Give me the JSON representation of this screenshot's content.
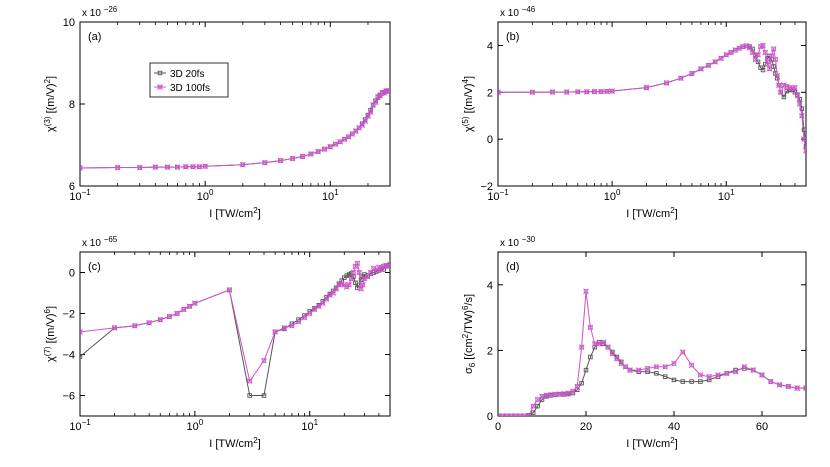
{
  "chart_data": [
    {
      "type": "line",
      "panel_label": "(a)",
      "xscale": "log",
      "xlim": [
        0.1,
        30
      ],
      "ylim": [
        6,
        10
      ],
      "xlabel": "I [TW/cm²]",
      "ylabel": "χ(3) [(m/V)²]",
      "ylabel_parts": {
        "sym": "χ",
        "sup": "(3)",
        "unit_pre": " [(m/V)",
        "unit_sup": "2",
        "unit_post": "]"
      },
      "xlabel_parts": {
        "pre": "I [TW/cm",
        "sup": "2",
        "post": "]"
      },
      "exponent_label": "x 10",
      "exponent": "−26",
      "xticks": [
        {
          "v": 0.1,
          "base": "10",
          "exp": "−1"
        },
        {
          "v": 1,
          "base": "10",
          "exp": "0"
        },
        {
          "v": 10,
          "base": "10",
          "exp": "1"
        }
      ],
      "yticks": [
        {
          "v": 6,
          "label": "6"
        },
        {
          "v": 8,
          "label": "8"
        },
        {
          "v": 10,
          "label": "10"
        }
      ],
      "legend": {
        "placement": "upper-left",
        "entries": [
          "3D 20fs",
          "3D 100fs"
        ]
      },
      "series": [
        {
          "name": "3D 20fs",
          "color": "#555555",
          "marker": "square",
          "x": [
            0.1,
            0.2,
            0.3,
            0.4,
            0.5,
            0.6,
            0.7,
            0.8,
            0.9,
            1,
            2,
            3,
            4,
            5,
            6,
            7,
            8,
            9,
            10,
            11,
            12,
            13,
            14,
            15,
            16,
            17,
            18,
            19,
            20,
            21,
            22,
            23,
            24,
            25,
            26,
            27,
            28,
            29,
            30
          ],
          "y": [
            6.44,
            6.45,
            6.45,
            6.46,
            6.46,
            6.46,
            6.47,
            6.47,
            6.47,
            6.48,
            6.52,
            6.57,
            6.62,
            6.67,
            6.72,
            6.78,
            6.84,
            6.9,
            6.96,
            7.02,
            7.08,
            7.14,
            7.2,
            7.27,
            7.34,
            7.42,
            7.52,
            7.62,
            7.73,
            7.85,
            7.97,
            8.08,
            8.16,
            8.22,
            8.26,
            8.29,
            8.31,
            8.32,
            8.32
          ]
        },
        {
          "name": "3D 100fs",
          "color": "#cc55cc",
          "marker": "cross-square",
          "x": [
            0.1,
            0.2,
            0.3,
            0.4,
            0.5,
            0.6,
            0.7,
            0.8,
            0.9,
            1,
            2,
            3,
            4,
            5,
            6,
            7,
            8,
            9,
            10,
            11,
            12,
            13,
            14,
            15,
            16,
            17,
            18,
            19,
            20,
            21,
            22,
            23,
            24,
            25,
            26,
            27,
            28,
            29,
            30
          ],
          "y": [
            6.44,
            6.45,
            6.45,
            6.46,
            6.46,
            6.46,
            6.47,
            6.47,
            6.47,
            6.48,
            6.52,
            6.57,
            6.62,
            6.67,
            6.72,
            6.78,
            6.84,
            6.9,
            6.96,
            7.02,
            7.08,
            7.14,
            7.2,
            7.27,
            7.34,
            7.42,
            7.48,
            7.58,
            7.7,
            7.8,
            7.98,
            8.04,
            8.18,
            8.2,
            8.28,
            8.27,
            8.32,
            8.33,
            8.31
          ]
        }
      ]
    },
    {
      "type": "line",
      "panel_label": "(b)",
      "xscale": "log",
      "xlim": [
        0.1,
        50
      ],
      "ylim": [
        -2,
        5
      ],
      "xlabel": "I [TW/cm²]",
      "ylabel": "χ(5) [(m/V)⁴]",
      "ylabel_parts": {
        "sym": "χ",
        "sup": "(5)",
        "unit_pre": " [(m/V)",
        "unit_sup": "4",
        "unit_post": "]"
      },
      "xlabel_parts": {
        "pre": "I [TW/cm",
        "sup": "2",
        "post": "]"
      },
      "exponent_label": "x 10",
      "exponent": "−46",
      "xticks": [
        {
          "v": 0.1,
          "base": "10",
          "exp": "−1"
        },
        {
          "v": 1,
          "base": "10",
          "exp": "0"
        },
        {
          "v": 10,
          "base": "10",
          "exp": "1"
        }
      ],
      "yticks": [
        {
          "v": -2,
          "label": "−2"
        },
        {
          "v": 0,
          "label": "0"
        },
        {
          "v": 2,
          "label": "2"
        },
        {
          "v": 4,
          "label": "4"
        }
      ],
      "series": [
        {
          "name": "3D 20fs",
          "color": "#555555",
          "marker": "square",
          "x": [
            0.1,
            0.2,
            0.3,
            0.4,
            0.5,
            0.6,
            0.7,
            0.8,
            0.9,
            1,
            2,
            3,
            4,
            5,
            6,
            7,
            8,
            9,
            10,
            11,
            12,
            13,
            14,
            15,
            16,
            17,
            18,
            19,
            20,
            21,
            22,
            23,
            24,
            25,
            26,
            27,
            28,
            29,
            30,
            32,
            34,
            36,
            38,
            40,
            42,
            44,
            46,
            48,
            50
          ],
          "y": [
            2.0,
            2.0,
            2.01,
            2.01,
            2.02,
            2.02,
            2.03,
            2.03,
            2.04,
            2.05,
            2.2,
            2.4,
            2.6,
            2.8,
            3.0,
            3.15,
            3.3,
            3.45,
            3.6,
            3.7,
            3.8,
            3.88,
            3.95,
            3.98,
            3.95,
            3.85,
            3.6,
            3.3,
            3.05,
            2.95,
            3.2,
            3.45,
            3.55,
            3.4,
            3.1,
            2.8,
            2.6,
            2.3,
            2.0,
            1.8,
            2.05,
            2.1,
            2.1,
            2.0,
            1.9,
            1.7,
            1.3,
            0.4,
            -0.3
          ]
        },
        {
          "name": "3D 100fs",
          "color": "#cc55cc",
          "marker": "cross-square",
          "x": [
            0.1,
            0.2,
            0.3,
            0.4,
            0.5,
            0.6,
            0.7,
            0.8,
            0.9,
            1,
            2,
            3,
            4,
            5,
            6,
            7,
            8,
            9,
            10,
            11,
            12,
            13,
            14,
            15,
            16,
            17,
            18,
            19,
            20,
            21,
            22,
            23,
            24,
            25,
            26,
            27,
            28,
            29,
            30,
            32,
            34,
            36,
            38,
            40,
            42,
            44,
            46,
            48,
            50
          ],
          "y": [
            2.0,
            2.0,
            2.01,
            2.01,
            2.02,
            2.02,
            2.03,
            2.03,
            2.04,
            2.05,
            2.2,
            2.4,
            2.6,
            2.8,
            3.0,
            3.15,
            3.3,
            3.45,
            3.6,
            3.7,
            3.8,
            3.88,
            3.95,
            3.98,
            3.9,
            3.7,
            3.4,
            3.6,
            3.95,
            4.0,
            3.7,
            3.3,
            3.0,
            3.55,
            3.85,
            3.4,
            2.7,
            2.3,
            2.0,
            2.3,
            2.25,
            2.2,
            2.15,
            2.2,
            1.85,
            1.5,
            1.0,
            0.0,
            -0.5
          ]
        }
      ]
    },
    {
      "type": "line",
      "panel_label": "(c)",
      "xscale": "log",
      "xlim": [
        0.1,
        50
      ],
      "ylim": [
        -7,
        1
      ],
      "xlabel": "I [TW/cm²]",
      "ylabel": "χ(7) [(m/V)⁶]",
      "ylabel_parts": {
        "sym": "χ",
        "sup": "(7)",
        "unit_pre": " [(m/V)",
        "unit_sup": "6",
        "unit_post": "]"
      },
      "xlabel_parts": {
        "pre": "I [TW/cm",
        "sup": "2",
        "post": "]"
      },
      "exponent_label": "x 10",
      "exponent": "−65",
      "xticks": [
        {
          "v": 0.1,
          "base": "10",
          "exp": "−1"
        },
        {
          "v": 1,
          "base": "10",
          "exp": "0"
        },
        {
          "v": 10,
          "base": "10",
          "exp": "1"
        }
      ],
      "yticks": [
        {
          "v": -6,
          "label": "−6"
        },
        {
          "v": -4,
          "label": "−4"
        },
        {
          "v": -2,
          "label": "−2"
        },
        {
          "v": 0,
          "label": "0"
        }
      ],
      "series": [
        {
          "name": "3D 20fs",
          "color": "#555555",
          "marker": "square",
          "x": [
            0.1,
            0.2,
            0.3,
            0.4,
            0.5,
            0.6,
            0.7,
            0.8,
            0.9,
            1,
            2,
            3,
            4,
            5,
            6,
            7,
            8,
            9,
            10,
            11,
            12,
            13,
            14,
            15,
            16,
            17,
            18,
            19,
            20,
            21,
            22,
            23,
            24,
            25,
            26,
            27,
            28,
            29,
            30,
            32,
            34,
            36,
            38,
            40,
            42,
            44,
            46,
            48,
            50
          ],
          "y": [
            -4.1,
            -2.7,
            -2.6,
            -2.45,
            -2.3,
            -2.15,
            -2.0,
            -1.8,
            -1.65,
            -1.5,
            -0.85,
            -6.0,
            -6.0,
            -2.9,
            -2.75,
            -2.5,
            -2.3,
            -2.1,
            -1.9,
            -1.75,
            -1.6,
            -1.4,
            -1.2,
            -1.05,
            -0.9,
            -0.75,
            -0.55,
            -0.4,
            -0.25,
            -0.15,
            -0.1,
            -0.05,
            -0.2,
            -0.5,
            -0.75,
            -0.6,
            -0.35,
            -0.2,
            -0.1,
            -0.15,
            -0.05,
            0.0,
            0.05,
            0.1,
            0.2,
            0.15,
            0.3,
            0.35,
            0.4
          ]
        },
        {
          "name": "3D 100fs",
          "color": "#cc55cc",
          "marker": "cross-square",
          "x": [
            0.1,
            0.2,
            0.3,
            0.4,
            0.5,
            0.6,
            0.7,
            0.8,
            0.9,
            1,
            2,
            3,
            4,
            5,
            6,
            7,
            8,
            9,
            10,
            11,
            12,
            13,
            14,
            15,
            16,
            17,
            18,
            19,
            20,
            21,
            22,
            23,
            24,
            25,
            26,
            27,
            28,
            29,
            30,
            32,
            34,
            36,
            38,
            40,
            42,
            44,
            46,
            48,
            50
          ],
          "y": [
            -2.9,
            -2.7,
            -2.6,
            -2.45,
            -2.3,
            -2.15,
            -2.0,
            -1.8,
            -1.65,
            -1.5,
            -0.85,
            -5.3,
            -4.3,
            -2.9,
            -2.7,
            -2.6,
            -2.4,
            -2.2,
            -2.0,
            -1.8,
            -1.65,
            -1.5,
            -1.3,
            -1.1,
            -1.0,
            -0.8,
            -0.6,
            -0.55,
            -0.6,
            -0.7,
            -0.6,
            -0.3,
            0.0,
            0.3,
            0.45,
            0.0,
            -0.8,
            -0.6,
            -0.3,
            -0.2,
            0.0,
            0.2,
            0.1,
            0.25,
            0.15,
            0.3,
            0.35,
            0.3,
            0.4
          ]
        }
      ]
    },
    {
      "type": "line",
      "panel_label": "(d)",
      "xscale": "linear",
      "xlim": [
        0,
        70
      ],
      "ylim": [
        0,
        5
      ],
      "xlabel": "I [TW/cm²]",
      "ylabel": "σ6 [(cm²/TW)⁶/s]",
      "ylabel_parts": {
        "sym": "σ",
        "sub": "6",
        "unit_pre": " [(cm",
        "unit_sup": "2",
        "unit_mid": "/TW)",
        "unit_sup2": "6",
        "unit_post": "/s]"
      },
      "xlabel_parts": {
        "pre": "I [TW/cm",
        "sup": "2",
        "post": "]"
      },
      "exponent_label": "x 10",
      "exponent": "−30",
      "xticks": [
        {
          "v": 0,
          "label": "0"
        },
        {
          "v": 20,
          "label": "20"
        },
        {
          "v": 40,
          "label": "40"
        },
        {
          "v": 60,
          "label": "60"
        }
      ],
      "yticks": [
        {
          "v": 0,
          "label": "0"
        },
        {
          "v": 2,
          "label": "2"
        },
        {
          "v": 4,
          "label": "4"
        }
      ],
      "series": [
        {
          "name": "3D 20fs",
          "color": "#555555",
          "marker": "square",
          "x": [
            0,
            1,
            2,
            3,
            4,
            5,
            6,
            7,
            8,
            9,
            10,
            11,
            12,
            13,
            14,
            15,
            16,
            17,
            18,
            19,
            20,
            21,
            22,
            23,
            24,
            25,
            26,
            27,
            28,
            29,
            30,
            32,
            34,
            36,
            38,
            40,
            42,
            44,
            46,
            48,
            50,
            52,
            54,
            56,
            58,
            60,
            62,
            64,
            66,
            68,
            70
          ],
          "y": [
            0,
            0,
            0,
            0,
            0,
            0,
            0.0,
            0.02,
            0.1,
            0.3,
            0.5,
            0.6,
            0.63,
            0.65,
            0.66,
            0.66,
            0.67,
            0.7,
            0.8,
            1.0,
            1.4,
            1.8,
            2.1,
            2.25,
            2.2,
            2.1,
            1.95,
            1.8,
            1.65,
            1.5,
            1.4,
            1.35,
            1.35,
            1.3,
            1.2,
            1.1,
            1.05,
            1.05,
            1.05,
            1.1,
            1.2,
            1.3,
            1.4,
            1.45,
            1.4,
            1.25,
            1.05,
            0.95,
            0.9,
            0.85,
            0.85
          ]
        },
        {
          "name": "3D 100fs",
          "color": "#cc55cc",
          "marker": "cross-square",
          "x": [
            0,
            1,
            2,
            3,
            4,
            5,
            6,
            7,
            8,
            9,
            10,
            11,
            12,
            13,
            14,
            15,
            16,
            17,
            18,
            19,
            20,
            21,
            22,
            23,
            24,
            25,
            26,
            27,
            28,
            29,
            30,
            32,
            34,
            36,
            38,
            40,
            42,
            44,
            46,
            48,
            50,
            52,
            54,
            56,
            58,
            60,
            62,
            64,
            66,
            68,
            70
          ],
          "y": [
            0,
            0,
            0,
            0,
            0,
            0,
            0,
            0.0,
            0.3,
            0.5,
            0.6,
            0.63,
            0.65,
            0.66,
            0.67,
            0.68,
            0.7,
            0.75,
            0.9,
            2.1,
            3.8,
            2.7,
            2.2,
            2.2,
            2.25,
            2.1,
            1.9,
            1.75,
            1.6,
            1.5,
            1.4,
            1.4,
            1.45,
            1.5,
            1.5,
            1.6,
            1.95,
            1.55,
            1.25,
            1.2,
            1.25,
            1.3,
            1.35,
            1.5,
            1.4,
            1.25,
            1.05,
            0.95,
            0.9,
            0.85,
            0.85
          ]
        }
      ]
    }
  ]
}
